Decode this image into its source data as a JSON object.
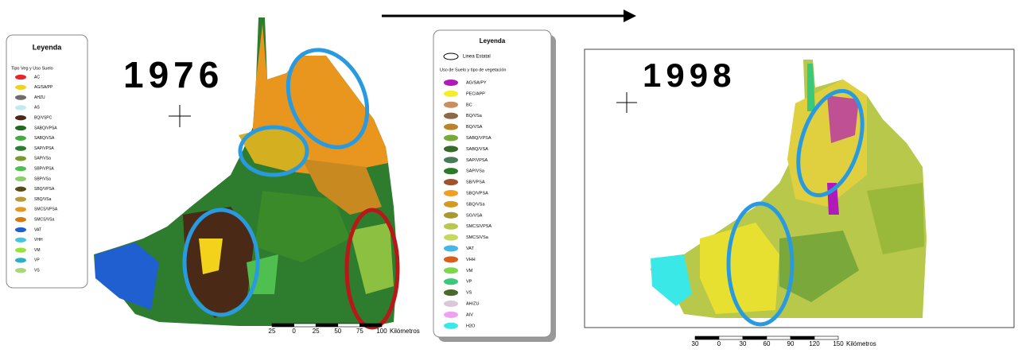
{
  "map_1976": {
    "year": "1976",
    "legend": {
      "title": "Leyenda",
      "subtitle": "Tipo Veg y Uso Suelo",
      "items": [
        {
          "label": "AC",
          "color": "#e8262a"
        },
        {
          "label": "AG/SA/PP",
          "color": "#f2d21b"
        },
        {
          "label": "AHZU",
          "color": "#6d6d6d"
        },
        {
          "label": "AS",
          "color": "#bfeaf0"
        },
        {
          "label": "BQ/VSPC",
          "color": "#4a2a16"
        },
        {
          "label": "SABQ/VPSA",
          "color": "#1f6b1f"
        },
        {
          "label": "SABQ/VSA",
          "color": "#3fae3f"
        },
        {
          "label": "SAP/VPSA",
          "color": "#2e7d2e"
        },
        {
          "label": "SAP/VSa",
          "color": "#7a9a2a"
        },
        {
          "label": "SBP/VPSA",
          "color": "#4fc04f"
        },
        {
          "label": "SBP/VSa",
          "color": "#8ccf6a"
        },
        {
          "label": "SBQ/VPSA",
          "color": "#5a4a1a"
        },
        {
          "label": "SBQ/VSa",
          "color": "#b89a3a"
        },
        {
          "label": "SMCS/VPSA",
          "color": "#e8961e"
        },
        {
          "label": "SMCS/VSa",
          "color": "#d47a12"
        },
        {
          "label": "VAT",
          "color": "#1f5fd0"
        },
        {
          "label": "VHH",
          "color": "#44c4e0"
        },
        {
          "label": "VM",
          "color": "#9ae23a"
        },
        {
          "label": "VP",
          "color": "#2ab0c8"
        },
        {
          "label": "VS",
          "color": "#a8d878"
        }
      ]
    },
    "scale_labels": [
      "25",
      "0",
      "25",
      "50",
      "75",
      "100"
    ],
    "scale_unit": "Kilómetros"
  },
  "map_1998": {
    "year": "1998",
    "legend": {
      "title": "Leyenda",
      "boundary": "Linea Estatal",
      "subtitle": "Uso de Suelo y tipo de vegetación",
      "items": [
        {
          "label": "AG/SA/PY",
          "color": "#b01ab8"
        },
        {
          "label": "PEC/APP",
          "color": "#f4ee2a"
        },
        {
          "label": "BC",
          "color": "#c89060"
        },
        {
          "label": "BQ/VSa",
          "color": "#8a6a4a"
        },
        {
          "label": "BQ/VSA",
          "color": "#b8862a"
        },
        {
          "label": "SABQ/VPSA",
          "color": "#7aa83a"
        },
        {
          "label": "SABQ/VSA",
          "color": "#3a6a2a"
        },
        {
          "label": "SAP/VPSA",
          "color": "#4a7a5a"
        },
        {
          "label": "SAP/VSa",
          "color": "#2a7a2a"
        },
        {
          "label": "SB/VPSA",
          "color": "#a0522d"
        },
        {
          "label": "SBQ/VPSA",
          "color": "#f0a020"
        },
        {
          "label": "SBQ/VSa",
          "color": "#d49a20"
        },
        {
          "label": "SG/VSA",
          "color": "#a89a30"
        },
        {
          "label": "SMCS/VPSA",
          "color": "#b8c84a"
        },
        {
          "label": "SMCS/VSa",
          "color": "#c8d85a"
        },
        {
          "label": "VAT",
          "color": "#44b8e8"
        },
        {
          "label": "VHH",
          "color": "#d8601a"
        },
        {
          "label": "VM",
          "color": "#7ad84a"
        },
        {
          "label": "VP",
          "color": "#3ac87a"
        },
        {
          "label": "VS",
          "color": "#4a6a2a"
        },
        {
          "label": "AH/ZU",
          "color": "#d8c8d8"
        },
        {
          "label": "AIV",
          "color": "#f0a0f0"
        },
        {
          "label": "H2O",
          "color": "#3ae8e8"
        }
      ]
    },
    "scale_labels": [
      "30",
      "0",
      "30",
      "60",
      "90",
      "120",
      "150"
    ],
    "scale_unit": "Kilómetros"
  }
}
